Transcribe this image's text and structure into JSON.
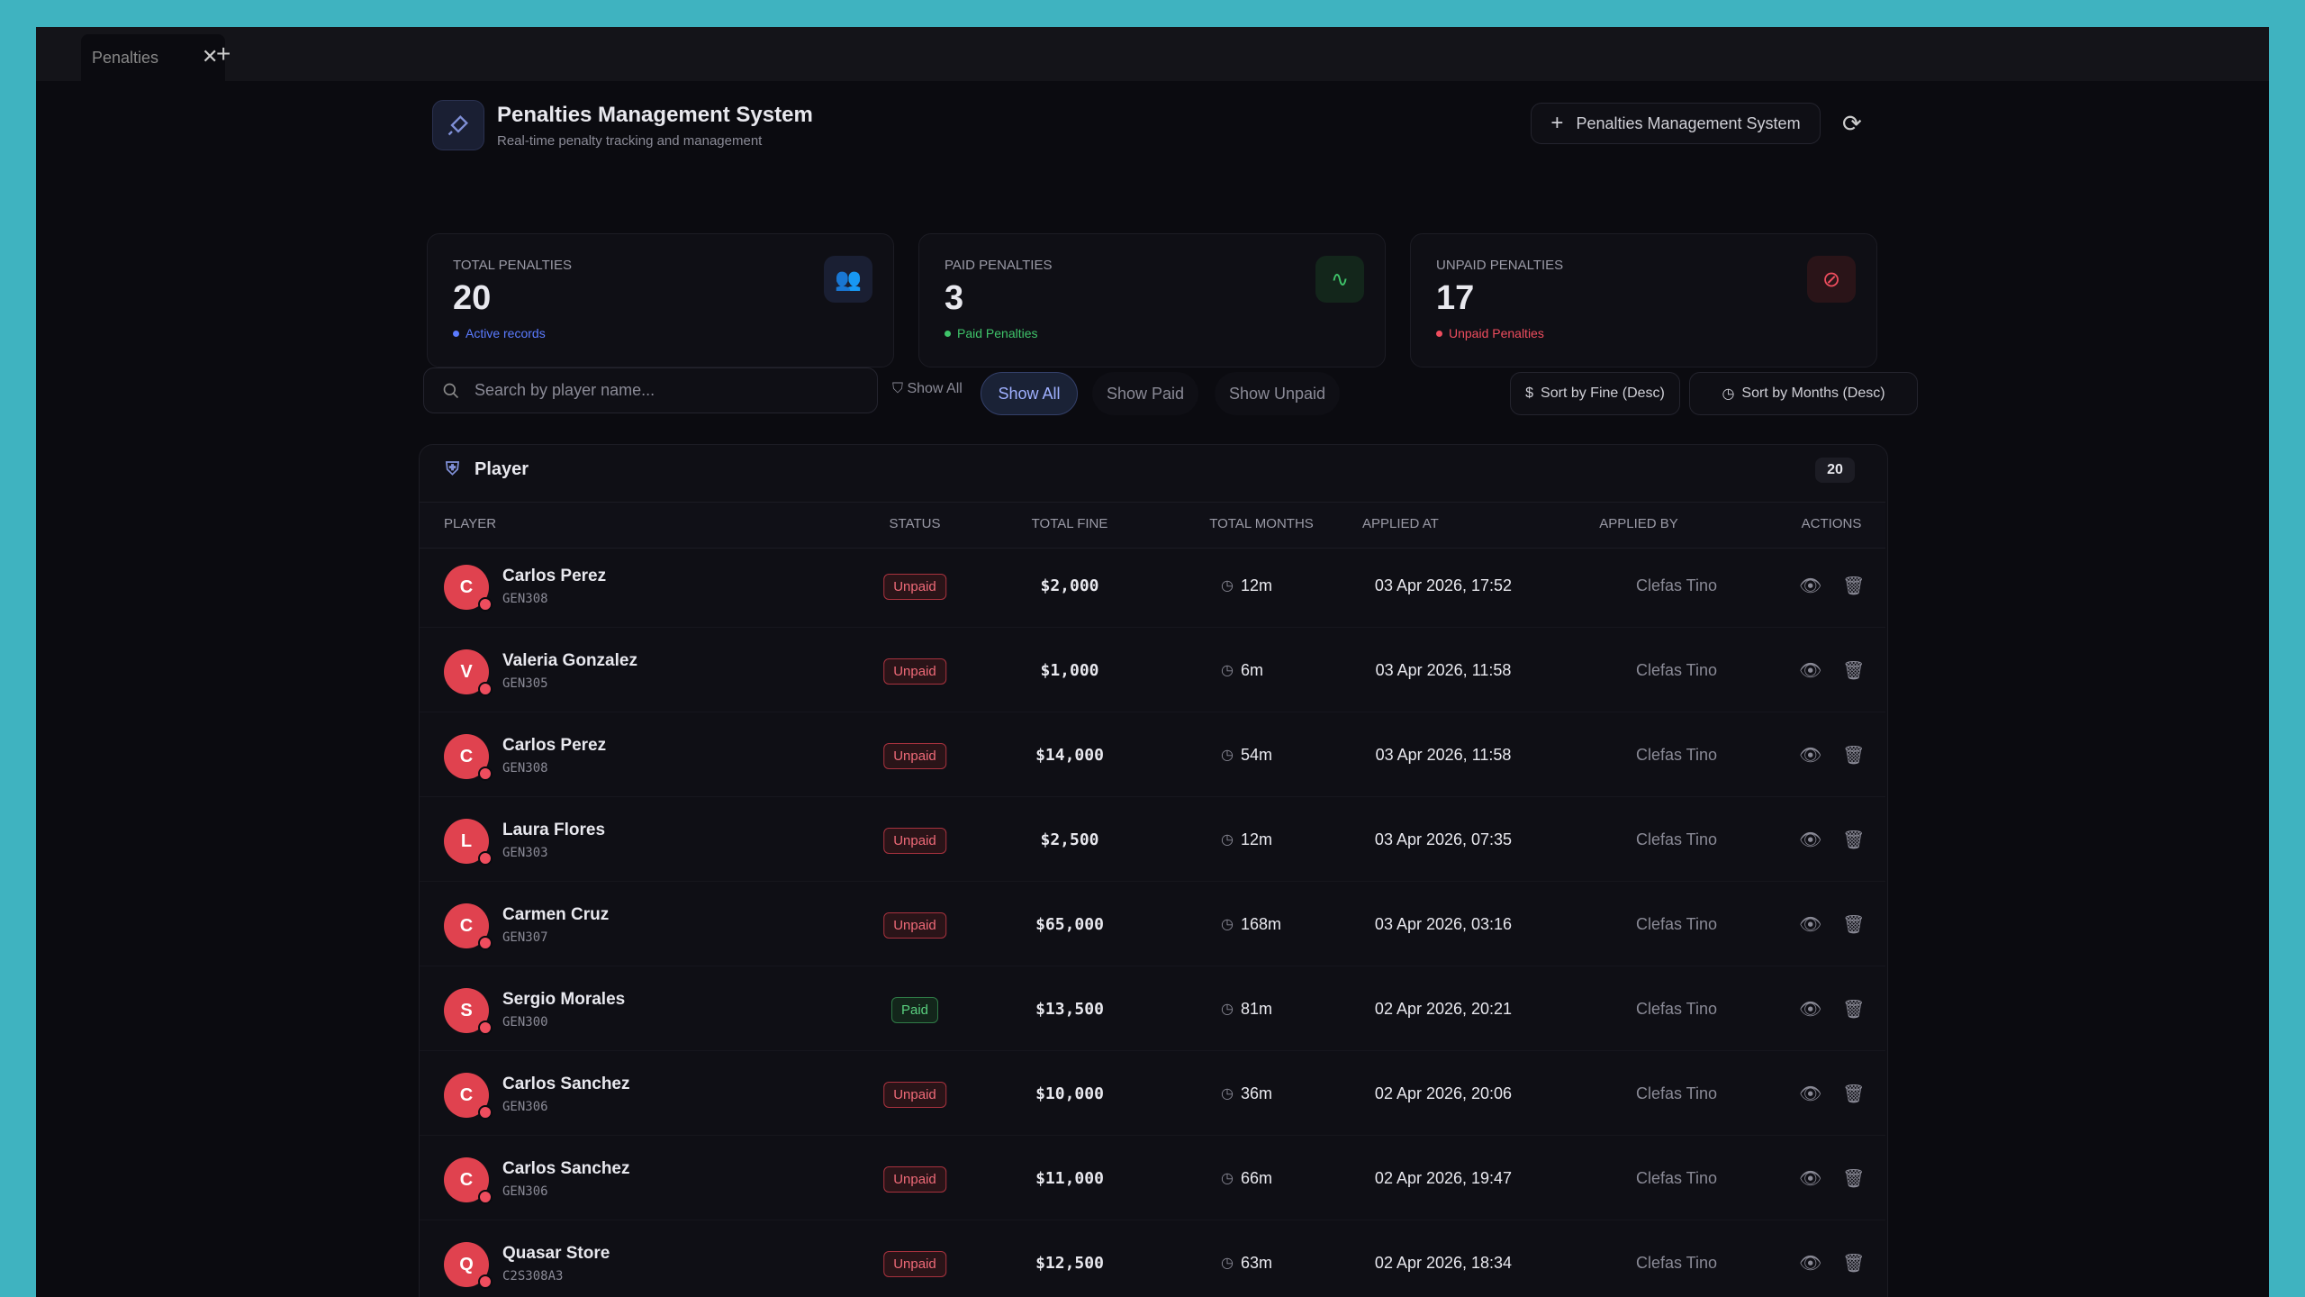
{
  "tab": {
    "title": "Penalties"
  },
  "header": {
    "title": "Penalties Management System",
    "subtitle": "Real-time penalty tracking and management",
    "button": "Penalties Management System"
  },
  "stats": [
    {
      "label": "TOTAL PENALTIES",
      "value": 20,
      "note": "Active records"
    },
    {
      "label": "PAID PENALTIES",
      "value": 3,
      "note": "Paid Penalties"
    },
    {
      "label": "UNPAID PENALTIES",
      "value": 17,
      "note": "Unpaid Penalties"
    }
  ],
  "toolbar": {
    "search_placeholder": "Search by player name...",
    "filter_label": "Show All",
    "filters": [
      "Show All",
      "Show Paid",
      "Show Unpaid"
    ],
    "sorts": [
      "Sort by Fine (Desc)",
      "Sort by Months (Desc)"
    ]
  },
  "table": {
    "title": "Player",
    "count": 20,
    "columns": [
      "PLAYER",
      "STATUS",
      "TOTAL FINE",
      "TOTAL MONTHS",
      "APPLIED AT",
      "APPLIED BY",
      "ACTIONS"
    ],
    "rows": [
      {
        "initial": "C",
        "name": "Carlos Perez",
        "id": "GEN308",
        "status": "Unpaid",
        "fine": "$2,000",
        "months": "12m",
        "applied_at": "03 Apr 2026, 17:52",
        "applied_by": "Clefas Tino"
      },
      {
        "initial": "V",
        "name": "Valeria Gonzalez",
        "id": "GEN305",
        "status": "Unpaid",
        "fine": "$1,000",
        "months": "6m",
        "applied_at": "03 Apr 2026, 11:58",
        "applied_by": "Clefas Tino"
      },
      {
        "initial": "C",
        "name": "Carlos Perez",
        "id": "GEN308",
        "status": "Unpaid",
        "fine": "$14,000",
        "months": "54m",
        "applied_at": "03 Apr 2026, 11:58",
        "applied_by": "Clefas Tino"
      },
      {
        "initial": "L",
        "name": "Laura Flores",
        "id": "GEN303",
        "status": "Unpaid",
        "fine": "$2,500",
        "months": "12m",
        "applied_at": "03 Apr 2026, 07:35",
        "applied_by": "Clefas Tino"
      },
      {
        "initial": "C",
        "name": "Carmen Cruz",
        "id": "GEN307",
        "status": "Unpaid",
        "fine": "$65,000",
        "months": "168m",
        "applied_at": "03 Apr 2026, 03:16",
        "applied_by": "Clefas Tino"
      },
      {
        "initial": "S",
        "name": "Sergio Morales",
        "id": "GEN300",
        "status": "Paid",
        "fine": "$13,500",
        "months": "81m",
        "applied_at": "02 Apr 2026, 20:21",
        "applied_by": "Clefas Tino"
      },
      {
        "initial": "C",
        "name": "Carlos Sanchez",
        "id": "GEN306",
        "status": "Unpaid",
        "fine": "$10,000",
        "months": "36m",
        "applied_at": "02 Apr 2026, 20:06",
        "applied_by": "Clefas Tino"
      },
      {
        "initial": "C",
        "name": "Carlos Sanchez",
        "id": "GEN306",
        "status": "Unpaid",
        "fine": "$11,000",
        "months": "66m",
        "applied_at": "02 Apr 2026, 19:47",
        "applied_by": "Clefas Tino"
      },
      {
        "initial": "Q",
        "name": "Quasar Store",
        "id": "C2S308A3",
        "status": "Unpaid",
        "fine": "$12,500",
        "months": "63m",
        "applied_at": "02 Apr 2026, 18:34",
        "applied_by": "Clefas Tino"
      }
    ]
  }
}
